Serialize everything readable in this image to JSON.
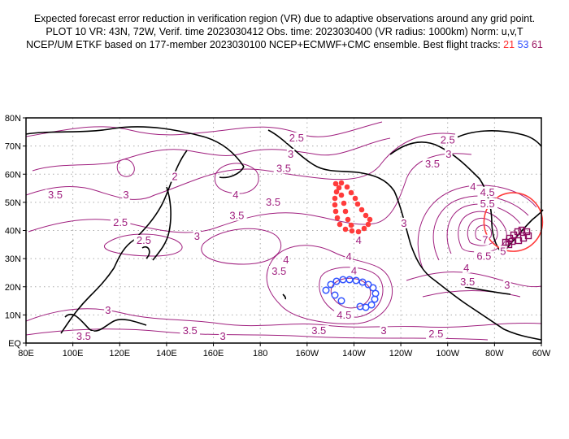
{
  "title": {
    "line1": "Expected forecast error reduction in verification region (VR) due to adaptive observations around any grid point.",
    "line2": "PLOT 10 VR: 43N, 72W, Verif. time 2023030412 Obs. time: 2023030400 (VR radius: 1000km) Norm: u,v,T",
    "line3": "NCEP/UM ETKF based on 177-member 2023030100 NCEP+ECMWF+CMC ensemble. Best flight tracks: ",
    "tracks": [
      "21",
      "53",
      "61"
    ]
  },
  "colors": {
    "contour": "#a0207f",
    "track1": "#ff3b3b",
    "track2": "#3355ff",
    "track3": "#8b0a5e",
    "vr_circle": "#ff3b3b",
    "coast": "#000000",
    "grid": "#aaaaaa"
  },
  "map": {
    "lon_range": [
      80,
      300
    ],
    "lat_range": [
      0,
      80
    ],
    "x_ticks": [
      {
        "lon": 80,
        "label": "80E"
      },
      {
        "lon": 100,
        "label": "100E"
      },
      {
        "lon": 120,
        "label": "120E"
      },
      {
        "lon": 140,
        "label": "140E"
      },
      {
        "lon": 160,
        "label": "160E"
      },
      {
        "lon": 180,
        "label": "180"
      },
      {
        "lon": 200,
        "label": "160W"
      },
      {
        "lon": 220,
        "label": "140W"
      },
      {
        "lon": 240,
        "label": "120W"
      },
      {
        "lon": 260,
        "label": "100W"
      },
      {
        "lon": 280,
        "label": "80W"
      },
      {
        "lon": 300,
        "label": "60W"
      }
    ],
    "y_ticks": [
      {
        "lat": 0,
        "label": "EQ"
      },
      {
        "lat": 10,
        "label": "10N"
      },
      {
        "lat": 20,
        "label": "20N"
      },
      {
        "lat": 30,
        "label": "30N"
      },
      {
        "lat": 40,
        "label": "40N"
      },
      {
        "lat": 50,
        "label": "50N"
      },
      {
        "lat": 60,
        "label": "60N"
      },
      {
        "lat": 70,
        "label": "70N"
      },
      {
        "lat": 80,
        "label": "80N"
      }
    ],
    "verification_region": {
      "lat": 43,
      "lon": 288,
      "radius_km": 1000
    },
    "contour_labels": [
      {
        "v": "2.5",
        "lon": 195.5,
        "lat": 72.8
      },
      {
        "v": "3",
        "lon": 193,
        "lat": 67
      },
      {
        "v": "3.5",
        "lon": 190,
        "lat": 62
      },
      {
        "v": "2",
        "lon": 143.5,
        "lat": 59
      },
      {
        "v": "4",
        "lon": 169.5,
        "lat": 52.6
      },
      {
        "v": "3.5",
        "lon": 170,
        "lat": 49
      },
      {
        "v": "3.5",
        "lon": 185.5,
        "lat": 50
      },
      {
        "v": "3.5",
        "lon": 92.5,
        "lat": 52.6
      },
      {
        "v": "3",
        "lon": 122.7,
        "lat": 52.6
      },
      {
        "v": "2.5",
        "lon": 120.3,
        "lat": 42.8
      },
      {
        "v": "2.5",
        "lon": 130.3,
        "lat": 36.4
      },
      {
        "v": "3",
        "lon": 153,
        "lat": 37.9
      },
      {
        "v": "4",
        "lon": 191,
        "lat": 29.5
      },
      {
        "v": "3.5",
        "lon": 188,
        "lat": 25.4
      },
      {
        "v": "4",
        "lon": 217.8,
        "lat": 30.6
      },
      {
        "v": "4",
        "lon": 222,
        "lat": 36.4
      },
      {
        "v": "3",
        "lon": 241.3,
        "lat": 42.5
      },
      {
        "v": "3.5",
        "lon": 253.5,
        "lat": 63.6
      },
      {
        "v": "3",
        "lon": 260.4,
        "lat": 67
      },
      {
        "v": "2.5",
        "lon": 260,
        "lat": 72
      },
      {
        "v": "4",
        "lon": 270.8,
        "lat": 55.5
      },
      {
        "v": "4.5",
        "lon": 277,
        "lat": 53.5
      },
      {
        "v": "5.5",
        "lon": 277,
        "lat": 49.4
      },
      {
        "v": "7",
        "lon": 276,
        "lat": 36.5
      },
      {
        "v": "6.5",
        "lon": 275.5,
        "lat": 34.5
      },
      {
        "v": "5",
        "lon": 276,
        "lat": 32.5
      },
      {
        "v": "4",
        "lon": 268,
        "lat": 26.6
      },
      {
        "v": "3.5",
        "lon": 268.5,
        "lat": 21.7
      },
      {
        "v": "3",
        "lon": 285.4,
        "lat": 20.5
      },
      {
        "v": "4.5",
        "lon": 215.8,
        "lat": 9.8
      },
      {
        "v": "3",
        "lon": 115,
        "lat": 11.6
      },
      {
        "v": "3.5",
        "lon": 104.6,
        "lat": 2.3
      },
      {
        "v": "3.5",
        "lon": 150,
        "lat": 4.3
      },
      {
        "v": "3",
        "lon": 164,
        "lat": 2.3
      },
      {
        "v": "3.5",
        "lon": 205,
        "lat": 4.3
      },
      {
        "v": "3",
        "lon": 232.7,
        "lat": 4.3
      },
      {
        "v": "2.5",
        "lon": 255,
        "lat": 3.2
      },
      {
        "v": "4",
        "lon": 220,
        "lat": 25.5
      }
    ]
  }
}
